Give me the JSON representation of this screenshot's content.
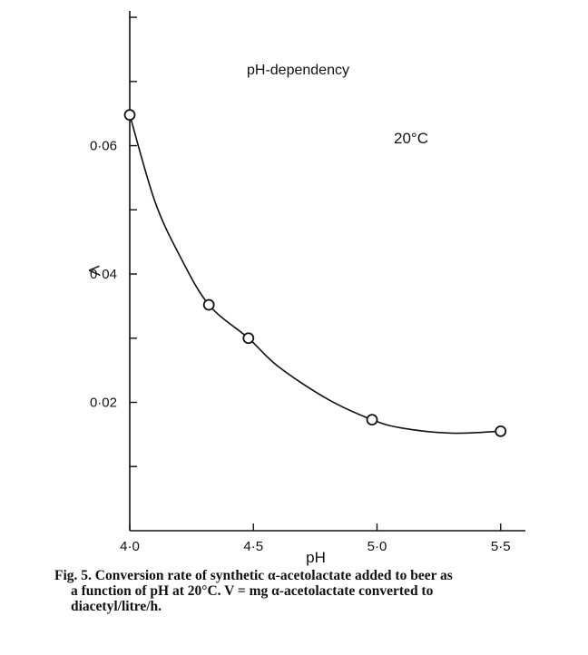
{
  "chart_data": {
    "type": "line",
    "title": "",
    "xlabel": "pH",
    "ylabel": "V",
    "xlim": [
      4.0,
      5.6
    ],
    "ylim": [
      0.0,
      0.081
    ],
    "x_ticks": [
      4.0,
      4.5,
      5.0,
      5.5
    ],
    "x_tick_labels": [
      "4·0",
      "4·5",
      "5·0",
      "5·5"
    ],
    "y_ticks": [
      0.02,
      0.04,
      0.06
    ],
    "y_tick_labels": [
      "0·02",
      "0·04",
      "0·06"
    ],
    "y_minor_ticks": [
      0.01,
      0.03,
      0.05,
      0.07,
      0.08
    ],
    "grid": false,
    "legend": "none",
    "annotations": [
      "pH-dependency",
      "20°C"
    ],
    "series": [
      {
        "marker": "open-circle",
        "points": [
          {
            "x": 4.0,
            "y": 0.0648
          },
          {
            "x": 4.32,
            "y": 0.0352
          },
          {
            "x": 4.48,
            "y": 0.03
          },
          {
            "x": 4.98,
            "y": 0.0173
          },
          {
            "x": 5.5,
            "y": 0.0155
          }
        ],
        "curve": [
          {
            "x": 4.0,
            "y": 0.0648
          },
          {
            "x": 4.1,
            "y": 0.0515
          },
          {
            "x": 4.2,
            "y": 0.043
          },
          {
            "x": 4.32,
            "y": 0.0352
          },
          {
            "x": 4.48,
            "y": 0.03
          },
          {
            "x": 4.6,
            "y": 0.0256
          },
          {
            "x": 4.8,
            "y": 0.0205
          },
          {
            "x": 4.98,
            "y": 0.0173
          },
          {
            "x": 5.1,
            "y": 0.016
          },
          {
            "x": 5.3,
            "y": 0.0152
          },
          {
            "x": 5.5,
            "y": 0.0155
          }
        ]
      }
    ]
  },
  "caption": {
    "line1": "Fig. 5. Conversion rate of synthetic α-acetolactate added to beer as",
    "line2": "a function of pH at 20°C. V = mg α-acetolactate converted to",
    "line3": "diacetyl/litre/h."
  }
}
